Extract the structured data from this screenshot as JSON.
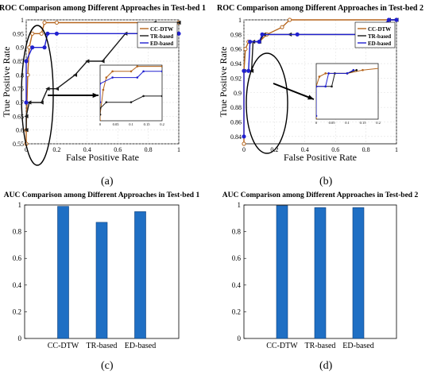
{
  "chart_data": [
    {
      "id": "a",
      "type": "line",
      "title": "ROC Comparison among Different Approaches in Test-bed 1",
      "xlabel": "False Positive Rate",
      "ylabel": "True Positive Rate",
      "xlim": [
        0,
        1
      ],
      "ylim": [
        0.55,
        1.0
      ],
      "xticks": [
        "0",
        "0.2",
        "0.4",
        "0.6",
        "0.8",
        "1"
      ],
      "yticks": [
        "0.55",
        "0.6",
        "0.65",
        "0.7",
        "0.75",
        "0.8",
        "0.85",
        "0.9",
        "0.95",
        "1"
      ],
      "legend_position": "top-right",
      "series": [
        {
          "name": "CC-DTW",
          "color": "#b5651d",
          "marker": "circle",
          "points": [
            [
              0,
              0.55
            ],
            [
              0,
              0.6
            ],
            [
              0.01,
              0.8
            ],
            [
              0.02,
              0.9
            ],
            [
              0.04,
              0.95
            ],
            [
              0.1,
              0.95
            ],
            [
              0.12,
              0.99
            ],
            [
              0.2,
              0.99
            ],
            [
              1,
              0.99
            ]
          ]
        },
        {
          "name": "TR-based",
          "color": "#1a1a1a",
          "marker": "triangle-left",
          "points": [
            [
              0,
              0.6
            ],
            [
              0,
              0.65
            ],
            [
              0.02,
              0.7
            ],
            [
              0.1,
              0.7
            ],
            [
              0.14,
              0.75
            ],
            [
              0.2,
              0.75
            ],
            [
              0.32,
              0.8
            ],
            [
              0.4,
              0.85
            ],
            [
              0.5,
              0.85
            ],
            [
              0.65,
              0.95
            ],
            [
              0.75,
              0.95
            ],
            [
              0.84,
              0.99
            ],
            [
              1,
              0.99
            ]
          ]
        },
        {
          "name": "ED-based",
          "color": "#2020d0",
          "marker": "circle",
          "points": [
            [
              0,
              0.7
            ],
            [
              0,
              0.85
            ],
            [
              0.04,
              0.9
            ],
            [
              0.12,
              0.9
            ],
            [
              0.14,
              0.95
            ],
            [
              0.2,
              0.95
            ],
            [
              0.75,
              0.95
            ],
            [
              1,
              0.95
            ]
          ]
        }
      ],
      "inset": {
        "xticks": [
          "0",
          "0.05",
          "0.1",
          "0.15",
          "0.2"
        ],
        "xlim": [
          0,
          0.2
        ],
        "ylim": [
          0.55,
          1.0
        ]
      }
    },
    {
      "id": "b",
      "type": "line",
      "title": "ROC Comparison among Different Approaches in Test-bed 2",
      "xlabel": "False Positive Rate",
      "ylabel": "True Positive Rate",
      "xlim": [
        0,
        1
      ],
      "ylim": [
        0.83,
        1.0
      ],
      "xticks": [
        "0",
        "0.2",
        "0.4",
        "0.6",
        "0.8",
        "1"
      ],
      "yticks": [
        "0.84",
        "0.86",
        "0.88",
        "0.9",
        "0.92",
        "0.94",
        "0.96",
        "0.98",
        "1"
      ],
      "legend_position": "top-right",
      "series": [
        {
          "name": "CC-DTW",
          "color": "#b5651d",
          "marker": "circle",
          "points": [
            [
              0,
              0.83
            ],
            [
              0,
              0.93
            ],
            [
              0.01,
              0.96
            ],
            [
              0.03,
              0.97
            ],
            [
              0.1,
              0.97
            ],
            [
              0.15,
              0.98
            ],
            [
              0.25,
              0.99
            ],
            [
              0.3,
              1.0
            ],
            [
              1,
              1.0
            ]
          ]
        },
        {
          "name": "TR-based",
          "color": "#1a1a1a",
          "marker": "triangle-left",
          "points": [
            [
              0,
              0.93
            ],
            [
              0.05,
              0.93
            ],
            [
              0.06,
              0.97
            ],
            [
              0.1,
              0.97
            ],
            [
              0.13,
              0.98
            ],
            [
              0.3,
              0.98
            ],
            [
              0.9,
              0.98
            ],
            [
              0.95,
              1.0
            ],
            [
              1,
              1.0
            ]
          ]
        },
        {
          "name": "ED-based",
          "color": "#2020d0",
          "marker": "circle",
          "points": [
            [
              0,
              0.84
            ],
            [
              0,
              0.93
            ],
            [
              0.03,
              0.93
            ],
            [
              0.04,
              0.97
            ],
            [
              0.1,
              0.97
            ],
            [
              0.12,
              0.98
            ],
            [
              0.35,
              0.98
            ],
            [
              0.85,
              0.98
            ],
            [
              0.95,
              1.0
            ],
            [
              1,
              1.0
            ]
          ]
        }
      ],
      "inset": {
        "xticks": [
          "0",
          "0.05",
          "0.1",
          "0.15",
          "0.2"
        ],
        "xlim": [
          0,
          0.2
        ],
        "ylim": [
          0.83,
          1.0
        ]
      }
    },
    {
      "id": "c",
      "type": "bar",
      "title": "AUC Comparison among  Different Approaches in Test-bed 1",
      "categories": [
        "CC-DTW",
        "TR-based",
        "ED-based"
      ],
      "values": [
        0.99,
        0.87,
        0.95
      ],
      "ylim": [
        0,
        1
      ],
      "yticks": [
        "0",
        "0.2",
        "0.4",
        "0.6",
        "0.8",
        "1"
      ],
      "bar_color": "#1f6fc4"
    },
    {
      "id": "d",
      "type": "bar",
      "title": "AUC Comparison among  Different Approaches in Test-bed 2",
      "categories": [
        "CC-DTW",
        "TR-based",
        "ED-based"
      ],
      "values": [
        0.995,
        0.98,
        0.98
      ],
      "ylim": [
        0,
        1
      ],
      "yticks": [
        "0",
        "0.2",
        "0.4",
        "0.6",
        "0.8",
        "1"
      ],
      "bar_color": "#1f6fc4"
    }
  ],
  "panel_labels": [
    "(a)",
    "(b)",
    "(c)",
    "(d)"
  ]
}
